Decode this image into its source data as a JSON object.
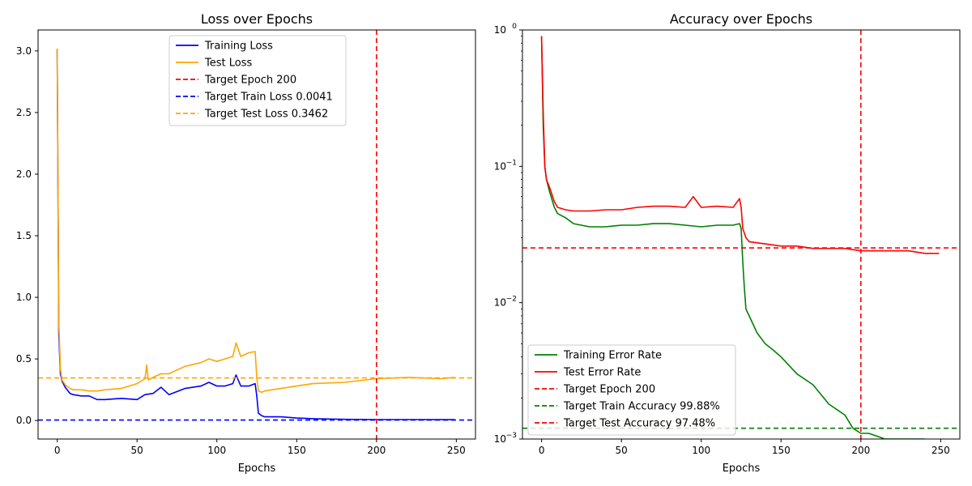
{
  "chart_data": [
    {
      "type": "line",
      "title": "Loss over Epochs",
      "xlabel": "Epochs",
      "ylabel": "",
      "xlim": [
        -12,
        262
      ],
      "ylim": [
        -0.15,
        3.17
      ],
      "xticks": [
        0,
        50,
        100,
        150,
        200,
        250
      ],
      "yticks": [
        0.0,
        0.5,
        1.0,
        1.5,
        2.0,
        2.5,
        3.0
      ],
      "ytick_labels": [
        "0.0",
        "0.5",
        "1.0",
        "1.5",
        "2.0",
        "2.5",
        "3.0"
      ],
      "legend_position": "top-center",
      "series": [
        {
          "name": "Training Loss",
          "color": "#0000ff",
          "x": [
            0,
            1,
            2,
            3,
            5,
            8,
            10,
            15,
            20,
            25,
            30,
            40,
            50,
            55,
            60,
            65,
            70,
            80,
            90,
            95,
            100,
            105,
            110,
            112,
            115,
            120,
            124,
            125,
            126,
            128,
            130,
            140,
            150,
            160,
            180,
            200,
            220,
            240,
            249
          ],
          "y": [
            3.01,
            0.7,
            0.38,
            0.32,
            0.27,
            0.22,
            0.21,
            0.2,
            0.2,
            0.17,
            0.17,
            0.18,
            0.17,
            0.21,
            0.22,
            0.27,
            0.21,
            0.26,
            0.28,
            0.31,
            0.28,
            0.28,
            0.3,
            0.37,
            0.28,
            0.28,
            0.3,
            0.2,
            0.06,
            0.04,
            0.03,
            0.03,
            0.02,
            0.015,
            0.01,
            0.008,
            0.008,
            0.007,
            0.007
          ]
        },
        {
          "name": "Test Loss",
          "color": "#ffa500",
          "x": [
            0,
            1,
            2,
            3,
            5,
            8,
            10,
            15,
            20,
            25,
            30,
            40,
            50,
            55,
            56,
            57,
            60,
            65,
            70,
            80,
            90,
            95,
            100,
            105,
            110,
            112,
            115,
            120,
            124,
            125,
            126,
            128,
            130,
            140,
            150,
            160,
            180,
            200,
            220,
            240,
            249
          ],
          "y": [
            3.02,
            0.8,
            0.42,
            0.33,
            0.29,
            0.26,
            0.25,
            0.25,
            0.24,
            0.24,
            0.25,
            0.26,
            0.3,
            0.34,
            0.45,
            0.33,
            0.35,
            0.38,
            0.38,
            0.44,
            0.47,
            0.5,
            0.48,
            0.5,
            0.52,
            0.63,
            0.52,
            0.55,
            0.56,
            0.35,
            0.24,
            0.23,
            0.24,
            0.26,
            0.28,
            0.3,
            0.31,
            0.34,
            0.35,
            0.34,
            0.35
          ]
        },
        {
          "name": "Target Epoch 200",
          "color": "#ff0000",
          "dashed": true,
          "vline": 200
        },
        {
          "name": "Target Train Loss 0.0041",
          "color": "#0000ff",
          "dashed": true,
          "hline": 0.0041
        },
        {
          "name": "Target Test Loss 0.3462",
          "color": "#ffa500",
          "dashed": true,
          "hline": 0.3462
        }
      ]
    },
    {
      "type": "line",
      "title": "Accuracy over Epochs",
      "xlabel": "Epochs",
      "ylabel": "",
      "yscale": "log",
      "xlim": [
        -12,
        262
      ],
      "ylim": [
        0.001,
        1.0
      ],
      "xticks": [
        0,
        50,
        100,
        150,
        200,
        250
      ],
      "yticks": [
        0.001,
        0.01,
        0.1,
        1
      ],
      "ytick_labels": [
        "10",
        "10",
        "10",
        "10"
      ],
      "ytick_exponents": [
        "−3",
        "−2",
        "−1",
        "0"
      ],
      "legend_position": "lower-left",
      "series": [
        {
          "name": "Training Error Rate",
          "color": "#008000",
          "x": [
            0,
            1,
            2,
            3,
            5,
            8,
            10,
            15,
            20,
            30,
            40,
            50,
            60,
            70,
            80,
            90,
            100,
            110,
            120,
            124,
            125,
            126,
            127,
            128,
            130,
            135,
            140,
            145,
            150,
            160,
            170,
            180,
            190,
            195,
            200,
            205,
            210,
            215,
            220,
            230,
            235,
            240
          ],
          "y": [
            0.9,
            0.2,
            0.1,
            0.08,
            0.065,
            0.05,
            0.045,
            0.042,
            0.038,
            0.036,
            0.036,
            0.037,
            0.037,
            0.038,
            0.038,
            0.037,
            0.036,
            0.037,
            0.037,
            0.038,
            0.035,
            0.02,
            0.013,
            0.009,
            0.008,
            0.006,
            0.005,
            0.0045,
            0.004,
            0.003,
            0.0025,
            0.0018,
            0.0015,
            0.0012,
            0.0011,
            0.0011,
            0.00105,
            0.001,
            0.001,
            0.001,
            0.001,
            0.001
          ]
        },
        {
          "name": "Test Error Rate",
          "color": "#ff0000",
          "x": [
            0,
            1,
            2,
            3,
            5,
            8,
            10,
            15,
            20,
            30,
            40,
            50,
            60,
            70,
            80,
            90,
            95,
            100,
            110,
            120,
            124,
            125,
            126,
            128,
            130,
            140,
            150,
            160,
            170,
            180,
            190,
            200,
            210,
            220,
            230,
            240,
            249
          ],
          "y": [
            0.9,
            0.25,
            0.1,
            0.08,
            0.07,
            0.055,
            0.05,
            0.048,
            0.047,
            0.047,
            0.048,
            0.048,
            0.05,
            0.051,
            0.051,
            0.05,
            0.06,
            0.05,
            0.051,
            0.05,
            0.058,
            0.05,
            0.035,
            0.03,
            0.028,
            0.027,
            0.026,
            0.026,
            0.025,
            0.025,
            0.025,
            0.024,
            0.024,
            0.024,
            0.024,
            0.023,
            0.023
          ]
        },
        {
          "name": "Target Epoch 200",
          "color": "#ff0000",
          "dashed": true,
          "vline": 200
        },
        {
          "name": "Target Train Accuracy 99.88%",
          "color": "#008000",
          "dashed": true,
          "hline": 0.0012
        },
        {
          "name": "Target Test Accuracy 97.48%",
          "color": "#ff0000",
          "dashed": true,
          "hline": 0.0252
        }
      ]
    }
  ]
}
